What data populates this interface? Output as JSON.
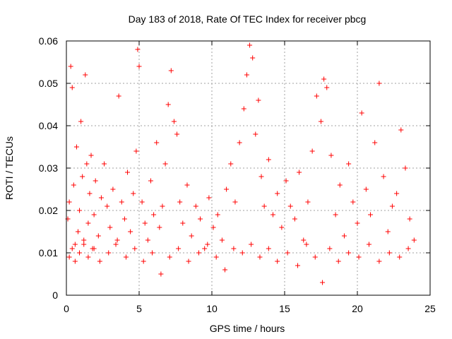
{
  "chart_data": {
    "type": "scatter",
    "title": "Day 183 of 2018, Rate Of TEC Index for receiver pbcg",
    "xlabel": "GPS time / hours",
    "ylabel": "ROTI / TECUs",
    "xlim": [
      0,
      25
    ],
    "ylim": [
      0,
      0.06
    ],
    "xticks": [
      "0",
      "5",
      "10",
      "15",
      "20",
      "25"
    ],
    "yticks": [
      "0",
      "0.01",
      "0.02",
      "0.03",
      "0.04",
      "0.05",
      "0.06"
    ],
    "grid": true,
    "marker": "+",
    "color": "#ff0000",
    "series": [
      {
        "x": [
          0.1,
          0.2,
          0.3,
          0.4,
          0.5,
          0.6,
          0.7,
          0.8,
          0.9,
          1.0,
          1.1,
          1.2,
          1.3,
          1.4,
          1.5,
          1.6,
          1.7,
          1.8,
          1.9,
          2.0,
          2.2,
          2.4,
          2.6,
          2.8,
          3.0,
          3.2,
          3.4,
          3.6,
          3.8,
          4.0,
          4.2,
          4.4,
          4.6,
          4.8,
          4.9,
          5.0,
          5.2,
          5.4,
          5.6,
          5.8,
          6.0,
          6.2,
          6.4,
          6.6,
          6.8,
          7.0,
          7.2,
          7.4,
          7.6,
          7.8,
          8.0,
          8.3,
          8.6,
          8.9,
          9.2,
          9.5,
          9.8,
          10.1,
          10.4,
          10.7,
          11.0,
          11.3,
          11.6,
          11.9,
          12.2,
          12.4,
          12.6,
          12.8,
          13.0,
          13.2,
          13.4,
          13.6,
          13.9,
          14.2,
          14.5,
          14.8,
          15.1,
          15.4,
          15.7,
          16.0,
          16.3,
          16.6,
          16.9,
          17.2,
          17.5,
          17.7,
          17.9,
          18.2,
          18.5,
          18.8,
          19.1,
          19.4,
          19.7,
          20.0,
          20.3,
          20.6,
          20.9,
          21.2,
          21.5,
          21.8,
          22.1,
          22.4,
          22.7,
          23.0,
          23.3,
          23.6,
          23.9,
          0.2,
          0.4,
          0.6,
          0.9,
          1.2,
          1.5,
          1.9,
          2.3,
          2.9,
          3.5,
          4.1,
          4.7,
          5.3,
          5.9,
          6.5,
          7.1,
          7.7,
          8.4,
          9.1,
          9.7,
          10.3,
          10.9,
          11.5,
          12.1,
          12.7,
          13.3,
          13.9,
          14.5,
          15.2,
          15.9,
          16.5,
          17.1,
          17.6,
          18.1,
          18.7,
          19.4,
          20.1,
          20.8,
          21.5,
          22.2,
          22.9,
          23.5
        ],
        "y": [
          0.018,
          0.022,
          0.054,
          0.049,
          0.026,
          0.012,
          0.035,
          0.015,
          0.02,
          0.041,
          0.028,
          0.013,
          0.052,
          0.031,
          0.017,
          0.024,
          0.033,
          0.011,
          0.019,
          0.027,
          0.014,
          0.023,
          0.031,
          0.021,
          0.016,
          0.025,
          0.012,
          0.047,
          0.022,
          0.018,
          0.029,
          0.015,
          0.024,
          0.034,
          0.058,
          0.054,
          0.022,
          0.017,
          0.013,
          0.027,
          0.019,
          0.036,
          0.016,
          0.021,
          0.031,
          0.045,
          0.053,
          0.041,
          0.038,
          0.022,
          0.017,
          0.026,
          0.014,
          0.021,
          0.018,
          0.011,
          0.023,
          0.016,
          0.019,
          0.013,
          0.025,
          0.031,
          0.022,
          0.036,
          0.044,
          0.052,
          0.059,
          0.056,
          0.038,
          0.046,
          0.028,
          0.021,
          0.032,
          0.019,
          0.024,
          0.016,
          0.027,
          0.021,
          0.018,
          0.029,
          0.013,
          0.022,
          0.034,
          0.047,
          0.041,
          0.051,
          0.049,
          0.033,
          0.019,
          0.026,
          0.014,
          0.031,
          0.022,
          0.017,
          0.043,
          0.025,
          0.019,
          0.036,
          0.05,
          0.028,
          0.015,
          0.021,
          0.024,
          0.039,
          0.03,
          0.018,
          0.013,
          0.009,
          0.011,
          0.008,
          0.01,
          0.012,
          0.009,
          0.011,
          0.008,
          0.01,
          0.013,
          0.009,
          0.011,
          0.008,
          0.01,
          0.005,
          0.009,
          0.011,
          0.008,
          0.01,
          0.012,
          0.009,
          0.006,
          0.011,
          0.01,
          0.012,
          0.009,
          0.011,
          0.008,
          0.01,
          0.007,
          0.012,
          0.009,
          0.003,
          0.011,
          0.008,
          0.01,
          0.009,
          0.012,
          0.008,
          0.01,
          0.009,
          0.011
        ]
      }
    ]
  }
}
